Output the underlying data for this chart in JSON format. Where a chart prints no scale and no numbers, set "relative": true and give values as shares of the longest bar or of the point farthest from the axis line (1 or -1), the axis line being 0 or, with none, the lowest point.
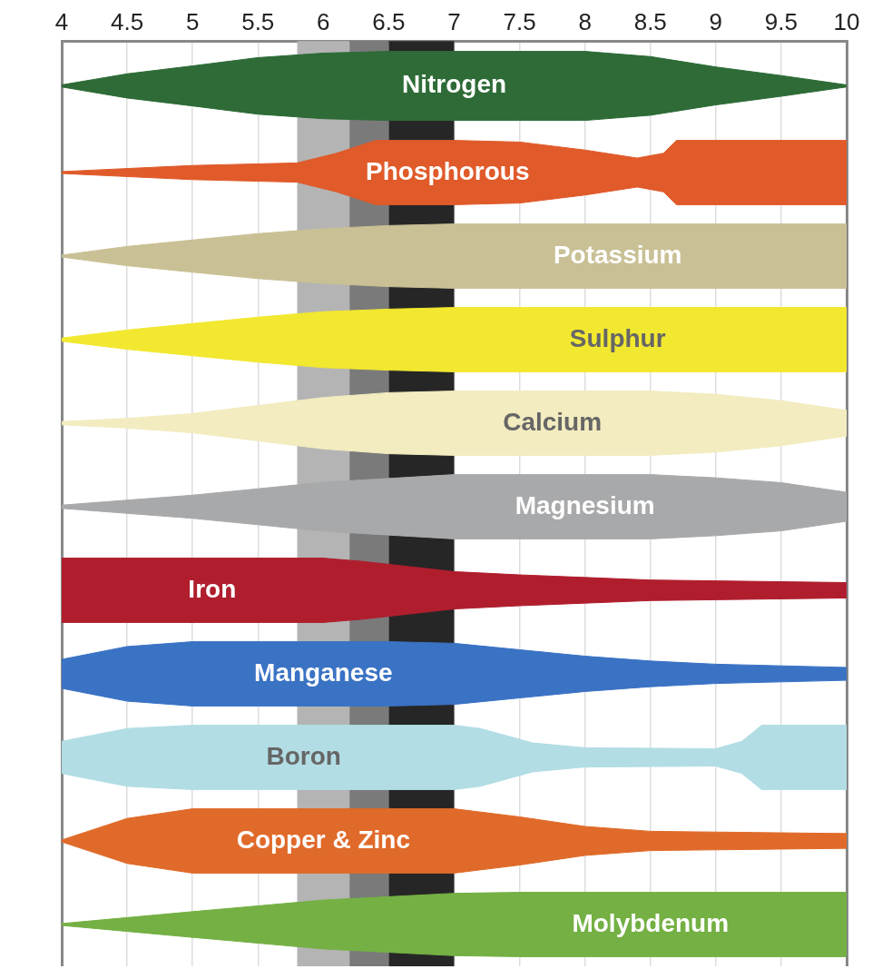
{
  "chart_data": [
    {
      "type": "area",
      "relative": true,
      "xlim": [
        4,
        10
      ],
      "xticks": [
        4,
        4.5,
        5,
        5.5,
        6,
        6.5,
        7,
        7.5,
        8,
        8.5,
        9,
        9.5,
        10
      ],
      "grid": "x",
      "tick_labels": "x",
      "bands": [
        {
          "axis": "x",
          "from": 5.8,
          "to": 6.2,
          "color": "#b4b4b4"
        },
        {
          "axis": "x",
          "from": 6.2,
          "to": 6.5,
          "color": "#7a7a7a"
        },
        {
          "axis": "x",
          "from": 6.5,
          "to": 7,
          "color": "#262626"
        }
      ],
      "series": [
        {
          "name": "Nitrogen",
          "color": "#2e6b37",
          "x": [
            4,
            4.5,
            5,
            5.5,
            6,
            6.5,
            7,
            7.5,
            8,
            8.5,
            9,
            9.5,
            10
          ],
          "values": [
            0.03,
            0.35,
            0.58,
            0.82,
            0.95,
            1,
            1,
            1,
            1,
            0.85,
            0.55,
            0.3,
            0.03
          ]
        }
      ]
    },
    {
      "type": "area",
      "relative": true,
      "xlim": [
        4,
        10
      ],
      "xticks": [
        4,
        4.5,
        5,
        5.5,
        6,
        6.5,
        7,
        7.5,
        8,
        8.5,
        9,
        9.5,
        10
      ],
      "grid": "x",
      "tick_labels": false,
      "bands": [
        {
          "axis": "x",
          "from": 5.8,
          "to": 6.2,
          "color": "#b4b4b4"
        },
        {
          "axis": "x",
          "from": 6.2,
          "to": 6.5,
          "color": "#7a7a7a"
        },
        {
          "axis": "x",
          "from": 6.5,
          "to": 7,
          "color": "#262626"
        }
      ],
      "series": [
        {
          "name": "Phosphorous",
          "color": "#e05a2a",
          "x": [
            4,
            5,
            5.8,
            6.1,
            6.4,
            7,
            7.5,
            8,
            8.4,
            8.6,
            8.7,
            10
          ],
          "values": [
            0.03,
            0.22,
            0.3,
            0.6,
            1,
            1,
            0.95,
            0.7,
            0.45,
            0.6,
            1,
            1
          ]
        }
      ]
    },
    {
      "type": "area",
      "relative": true,
      "xlim": [
        4,
        10
      ],
      "xticks": [
        4,
        4.5,
        5,
        5.5,
        6,
        6.5,
        7,
        7.5,
        8,
        8.5,
        9,
        9.5,
        10
      ],
      "grid": "x",
      "tick_labels": false,
      "bands": [
        {
          "axis": "x",
          "from": 5.8,
          "to": 6.2,
          "color": "#b4b4b4"
        },
        {
          "axis": "x",
          "from": 6.2,
          "to": 6.5,
          "color": "#7a7a7a"
        },
        {
          "axis": "x",
          "from": 6.5,
          "to": 7,
          "color": "#262626"
        }
      ],
      "series": [
        {
          "name": "Potassium",
          "color": "#c9c095",
          "x": [
            4,
            4.5,
            5,
            5.5,
            6,
            6.5,
            7,
            10
          ],
          "values": [
            0.03,
            0.3,
            0.5,
            0.7,
            0.85,
            0.95,
            1,
            1
          ]
        }
      ]
    },
    {
      "type": "area",
      "relative": true,
      "xlim": [
        4,
        10
      ],
      "xticks": [
        4,
        4.5,
        5,
        5.5,
        6,
        6.5,
        7,
        7.5,
        8,
        8.5,
        9,
        9.5,
        10
      ],
      "grid": "x",
      "tick_labels": false,
      "bands": [
        {
          "axis": "x",
          "from": 5.8,
          "to": 6.2,
          "color": "#b4b4b4"
        },
        {
          "axis": "x",
          "from": 6.2,
          "to": 6.5,
          "color": "#7a7a7a"
        },
        {
          "axis": "x",
          "from": 6.5,
          "to": 7,
          "color": "#262626"
        }
      ],
      "series": [
        {
          "name": "Sulphur",
          "color": "#f2e830",
          "x": [
            4,
            4.5,
            5,
            5.5,
            6,
            6.5,
            7,
            10
          ],
          "values": [
            0.05,
            0.3,
            0.5,
            0.7,
            0.87,
            0.95,
            1,
            1
          ]
        }
      ]
    },
    {
      "type": "area",
      "relative": true,
      "xlim": [
        4,
        10
      ],
      "xticks": [
        4,
        4.5,
        5,
        5.5,
        6,
        6.5,
        7,
        7.5,
        8,
        8.5,
        9,
        9.5,
        10
      ],
      "grid": "x",
      "tick_labels": false,
      "bands": [
        {
          "axis": "x",
          "from": 5.8,
          "to": 6.2,
          "color": "#b4b4b4"
        },
        {
          "axis": "x",
          "from": 6.2,
          "to": 6.5,
          "color": "#7a7a7a"
        },
        {
          "axis": "x",
          "from": 6.5,
          "to": 7,
          "color": "#262626"
        }
      ],
      "series": [
        {
          "name": "Calcium",
          "color": "#f2ecc0",
          "x": [
            4,
            4.5,
            5,
            5.5,
            6,
            6.5,
            7,
            8,
            8.5,
            9,
            9.5,
            10
          ],
          "values": [
            0.05,
            0.15,
            0.3,
            0.55,
            0.8,
            0.95,
            1,
            1,
            1,
            0.9,
            0.7,
            0.4
          ]
        }
      ]
    },
    {
      "type": "area",
      "relative": true,
      "xlim": [
        4,
        10
      ],
      "xticks": [
        4,
        4.5,
        5,
        5.5,
        6,
        6.5,
        7,
        7.5,
        8,
        8.5,
        9,
        9.5,
        10
      ],
      "grid": "x",
      "tick_labels": false,
      "bands": [
        {
          "axis": "x",
          "from": 5.8,
          "to": 6.2,
          "color": "#b4b4b4"
        },
        {
          "axis": "x",
          "from": 6.2,
          "to": 6.5,
          "color": "#7a7a7a"
        },
        {
          "axis": "x",
          "from": 6.5,
          "to": 7,
          "color": "#262626"
        }
      ],
      "series": [
        {
          "name": "Magnesium",
          "color": "#a8a9ab",
          "x": [
            4,
            5,
            6,
            7,
            8.5,
            9,
            9.5,
            10
          ],
          "values": [
            0.05,
            0.36,
            0.76,
            1,
            1,
            0.9,
            0.75,
            0.45
          ]
        }
      ]
    },
    {
      "type": "area",
      "relative": true,
      "xlim": [
        4,
        10
      ],
      "xticks": [
        4,
        4.5,
        5,
        5.5,
        6,
        6.5,
        7,
        7.5,
        8,
        8.5,
        9,
        9.5,
        10
      ],
      "grid": "x",
      "tick_labels": false,
      "bands": [
        {
          "axis": "x",
          "from": 5.8,
          "to": 6.2,
          "color": "#b4b4b4"
        },
        {
          "axis": "x",
          "from": 6.2,
          "to": 6.5,
          "color": "#7a7a7a"
        },
        {
          "axis": "x",
          "from": 6.5,
          "to": 7,
          "color": "#262626"
        }
      ],
      "series": [
        {
          "name": "Iron",
          "color": "#b01e2e",
          "x": [
            4,
            6,
            6.3,
            7,
            7.5,
            8,
            8.5,
            10
          ],
          "values": [
            1,
            1,
            0.9,
            0.58,
            0.48,
            0.4,
            0.32,
            0.24
          ]
        }
      ]
    },
    {
      "type": "area",
      "relative": true,
      "xlim": [
        4,
        10
      ],
      "xticks": [
        4,
        4.5,
        5,
        5.5,
        6,
        6.5,
        7,
        7.5,
        8,
        8.5,
        9,
        9.5,
        10
      ],
      "grid": "x",
      "tick_labels": false,
      "bands": [
        {
          "axis": "x",
          "from": 5.8,
          "to": 6.2,
          "color": "#b4b4b4"
        },
        {
          "axis": "x",
          "from": 6.2,
          "to": 6.5,
          "color": "#7a7a7a"
        },
        {
          "axis": "x",
          "from": 6.5,
          "to": 7,
          "color": "#262626"
        }
      ],
      "series": [
        {
          "name": "Manganese",
          "color": "#3a72c4",
          "x": [
            4,
            4.5,
            5,
            6.5,
            7,
            7.5,
            8,
            8.5,
            9,
            10
          ],
          "values": [
            0.45,
            0.85,
            1,
            1,
            0.95,
            0.75,
            0.55,
            0.4,
            0.3,
            0.2
          ]
        }
      ]
    },
    {
      "type": "area",
      "relative": true,
      "xlim": [
        4,
        10
      ],
      "xticks": [
        4,
        4.5,
        5,
        5.5,
        6,
        6.5,
        7,
        7.5,
        8,
        8.5,
        9,
        9.5,
        10
      ],
      "grid": "x",
      "tick_labels": false,
      "bands": [
        {
          "axis": "x",
          "from": 5.8,
          "to": 6.2,
          "color": "#b4b4b4"
        },
        {
          "axis": "x",
          "from": 6.2,
          "to": 6.5,
          "color": "#7a7a7a"
        },
        {
          "axis": "x",
          "from": 6.5,
          "to": 7,
          "color": "#262626"
        }
      ],
      "series": [
        {
          "name": "Boron",
          "color": "#b2dde5",
          "x": [
            4,
            4.5,
            5,
            7,
            7.2,
            7.6,
            8,
            9,
            9.2,
            9.35,
            10
          ],
          "values": [
            0.5,
            0.9,
            1,
            1,
            0.9,
            0.45,
            0.3,
            0.27,
            0.5,
            1,
            1
          ]
        }
      ]
    },
    {
      "type": "area",
      "relative": true,
      "xlim": [
        4,
        10
      ],
      "xticks": [
        4,
        4.5,
        5,
        5.5,
        6,
        6.5,
        7,
        7.5,
        8,
        8.5,
        9,
        9.5,
        10
      ],
      "grid": "x",
      "tick_labels": false,
      "bands": [
        {
          "axis": "x",
          "from": 5.8,
          "to": 6.2,
          "color": "#b4b4b4"
        },
        {
          "axis": "x",
          "from": 6.2,
          "to": 6.5,
          "color": "#7a7a7a"
        },
        {
          "axis": "x",
          "from": 6.5,
          "to": 7,
          "color": "#262626"
        }
      ],
      "series": [
        {
          "name": "Copper & Zinc",
          "color": "#e06a2a",
          "x": [
            4,
            4.5,
            5,
            7,
            7.5,
            8,
            8.5,
            10
          ],
          "values": [
            0.03,
            0.7,
            1,
            1,
            0.75,
            0.45,
            0.3,
            0.23
          ]
        }
      ]
    },
    {
      "type": "area",
      "relative": true,
      "xlim": [
        4,
        10
      ],
      "xticks": [
        4,
        4.5,
        5,
        5.5,
        6,
        6.5,
        7,
        7.5,
        8,
        8.5,
        9,
        9.5,
        10
      ],
      "grid": "x",
      "tick_labels": false,
      "bands": [
        {
          "axis": "x",
          "from": 5.8,
          "to": 6.2,
          "color": "#b4b4b4"
        },
        {
          "axis": "x",
          "from": 6.2,
          "to": 6.5,
          "color": "#7a7a7a"
        },
        {
          "axis": "x",
          "from": 6.5,
          "to": 7,
          "color": "#262626"
        }
      ],
      "series": [
        {
          "name": "Molybdenum",
          "color": "#74b044",
          "x": [
            4,
            5,
            6,
            7,
            7.5,
            10
          ],
          "values": [
            0.03,
            0.4,
            0.76,
            0.97,
            1,
            1
          ]
        }
      ]
    }
  ]
}
